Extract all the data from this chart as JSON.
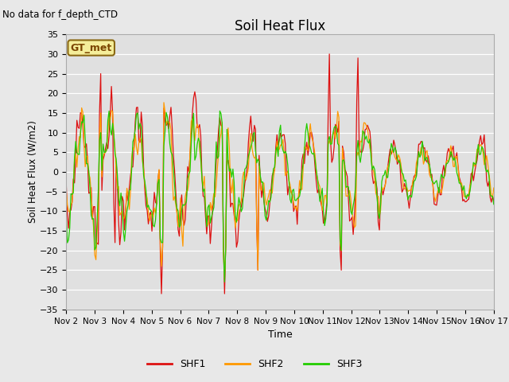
{
  "title": "Soil Heat Flux",
  "xlabel": "Time",
  "ylabel": "Soil Heat Flux (W/m2)",
  "ylim": [
    -35,
    35
  ],
  "yticks": [
    -35,
    -30,
    -25,
    -20,
    -15,
    -10,
    -5,
    0,
    5,
    10,
    15,
    20,
    25,
    30,
    35
  ],
  "series_colors": [
    "#dd1111",
    "#ff9900",
    "#22cc00"
  ],
  "series_names": [
    "SHF1",
    "SHF2",
    "SHF3"
  ],
  "top_label": "No data for f_depth_CTD",
  "box_label": "GT_met",
  "background_color": "#e8e8e8",
  "plot_bg_color": "#e0e0e0",
  "xtick_labels": [
    "Nov 2",
    "Nov 3",
    "Nov 4",
    "Nov 5",
    "Nov 6",
    "Nov 7",
    "Nov 8",
    "Nov 9",
    "Nov 10",
    "Nov 11",
    "Nov 12",
    "Nov 13",
    "Nov 14",
    "Nov 15",
    "Nov 16",
    "Nov 17"
  ]
}
